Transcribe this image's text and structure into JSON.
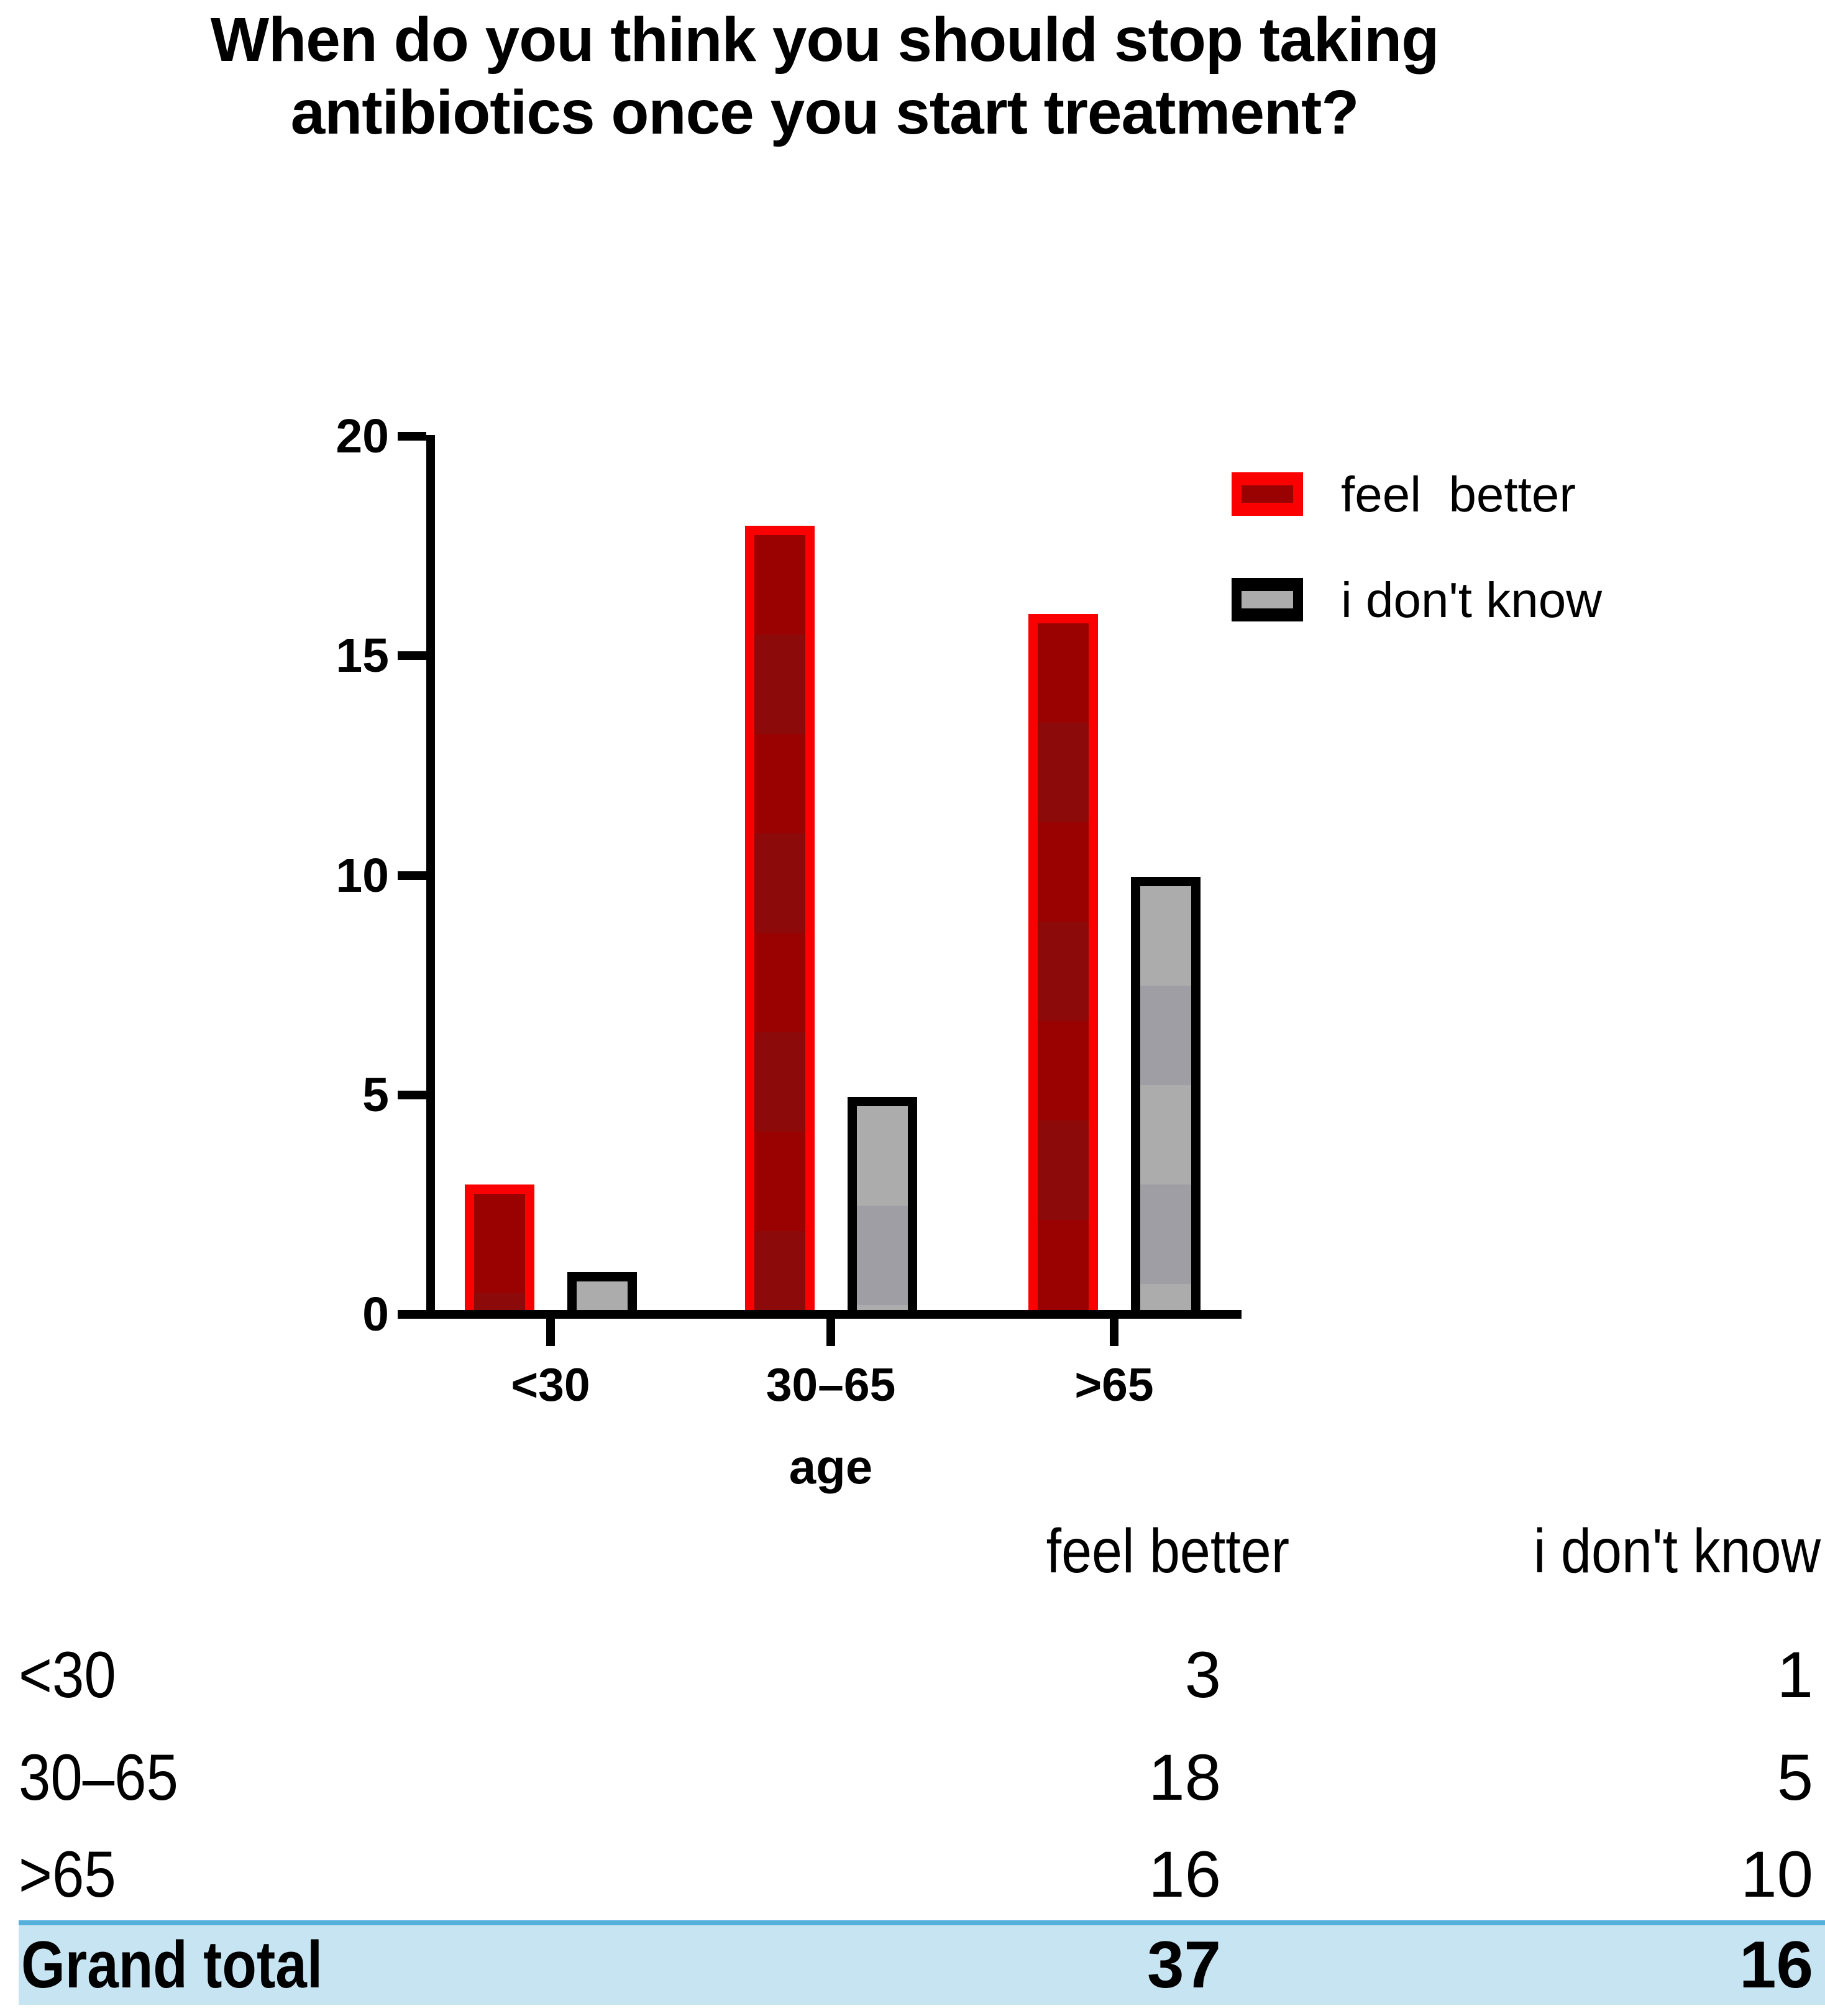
{
  "chart_data": {
    "type": "bar",
    "title": "When do you think you should stop taking antibiotics once you start treatment?",
    "categories": [
      "<30",
      "30–65",
      ">65"
    ],
    "series": [
      {
        "name": "feel  better",
        "values": [
          3,
          18,
          16
        ],
        "edge_color": "#fb0000",
        "fill_color": "#9a0202",
        "fill_color_alt": "#8d0a0a"
      },
      {
        "name": "i don't know",
        "values": [
          1,
          5,
          10
        ],
        "edge_color": "#000000",
        "fill_color": "#adacac",
        "fill_color_alt": "#9f9ea5"
      }
    ],
    "xlabel": "age",
    "ylabel": "",
    "ylim": [
      0,
      20
    ],
    "yticks": [
      0,
      5,
      10,
      15,
      20
    ],
    "grid": false,
    "legend_position": "upper-right"
  },
  "table": {
    "columns": [
      "feel better",
      "i don't know"
    ],
    "rows": [
      {
        "label": "<30",
        "feel_better": "3",
        "i_dont_know": "1"
      },
      {
        "label": "30–65",
        "feel_better": "18",
        "i_dont_know": "5"
      },
      {
        "label": ">65",
        "feel_better": "16",
        "i_dont_know": "10"
      }
    ],
    "total_row": {
      "label": "Grand total",
      "feel_better": "37",
      "i_dont_know": "16"
    },
    "total_row_bg": "#c7e4f2",
    "total_row_border": "#55b0dc"
  }
}
